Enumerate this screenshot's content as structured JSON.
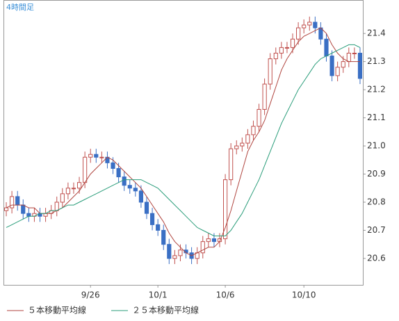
{
  "chart_data": {
    "type": "candlestick",
    "title": "4時間足",
    "categories": [
      null,
      null,
      null,
      null,
      null,
      null,
      null,
      null,
      null,
      null,
      null,
      null,
      null,
      null,
      null,
      "9/26",
      null,
      null,
      null,
      null,
      null,
      null,
      null,
      null,
      null,
      null,
      null,
      "10/1",
      null,
      null,
      null,
      null,
      null,
      null,
      null,
      null,
      null,
      null,
      null,
      "10/6",
      null,
      null,
      null,
      null,
      null,
      null,
      null,
      null,
      null,
      null,
      null,
      null,
      null,
      "10/10",
      null,
      null,
      null,
      null,
      null,
      null,
      null,
      null,
      null,
      null
    ],
    "open": [
      20.77,
      20.78,
      20.82,
      20.79,
      20.76,
      20.75,
      20.76,
      20.75,
      20.76,
      20.77,
      20.8,
      20.83,
      20.85,
      20.85,
      20.87,
      20.96,
      20.97,
      20.96,
      20.96,
      20.94,
      20.92,
      20.89,
      20.86,
      20.85,
      20.84,
      20.8,
      20.76,
      20.72,
      20.7,
      20.65,
      20.6,
      20.61,
      20.63,
      20.62,
      20.6,
      20.62,
      20.66,
      20.67,
      20.66,
      20.67,
      20.88,
      20.99,
      21.0,
      21.01,
      21.04,
      21.07,
      21.13,
      21.22,
      21.31,
      21.33,
      21.35,
      21.35,
      21.38,
      21.42,
      21.43,
      21.44,
      21.42,
      21.38,
      21.32,
      21.25,
      21.28,
      21.3,
      21.33,
      21.33
    ],
    "high": [
      20.8,
      20.84,
      20.84,
      20.81,
      20.78,
      20.78,
      20.78,
      20.78,
      20.79,
      20.82,
      20.85,
      20.87,
      20.87,
      20.89,
      20.98,
      20.99,
      20.99,
      20.98,
      20.98,
      20.96,
      20.94,
      20.91,
      20.88,
      20.87,
      20.86,
      20.82,
      20.78,
      20.74,
      20.72,
      20.67,
      20.63,
      20.65,
      20.65,
      20.64,
      20.64,
      20.68,
      20.69,
      20.69,
      20.69,
      20.9,
      21.01,
      21.02,
      21.03,
      21.06,
      21.09,
      21.15,
      21.24,
      21.33,
      21.35,
      21.37,
      21.37,
      21.4,
      21.44,
      21.45,
      21.46,
      21.46,
      21.44,
      21.4,
      21.34,
      21.3,
      21.32,
      21.35,
      21.35,
      21.35
    ],
    "low": [
      20.75,
      20.76,
      20.77,
      20.74,
      20.73,
      20.73,
      20.73,
      20.73,
      20.74,
      20.75,
      20.78,
      20.81,
      20.83,
      20.83,
      20.85,
      20.94,
      20.94,
      20.94,
      20.92,
      20.9,
      20.87,
      20.84,
      20.83,
      20.82,
      20.78,
      20.74,
      20.7,
      20.68,
      20.63,
      20.58,
      20.58,
      20.59,
      20.6,
      20.58,
      20.58,
      20.6,
      20.64,
      20.64,
      20.64,
      20.65,
      20.86,
      20.97,
      20.98,
      20.99,
      21.02,
      21.05,
      21.11,
      21.2,
      21.29,
      21.31,
      21.33,
      21.33,
      21.36,
      21.4,
      21.41,
      21.4,
      21.36,
      21.3,
      21.23,
      21.23,
      21.26,
      21.28,
      21.31,
      21.22
    ],
    "close": [
      20.78,
      20.82,
      20.79,
      20.76,
      20.75,
      20.76,
      20.75,
      20.76,
      20.77,
      20.8,
      20.83,
      20.85,
      20.85,
      20.87,
      20.96,
      20.97,
      20.96,
      20.96,
      20.94,
      20.92,
      20.89,
      20.86,
      20.85,
      20.84,
      20.8,
      20.76,
      20.72,
      20.7,
      20.65,
      20.6,
      20.61,
      20.63,
      20.62,
      20.6,
      20.62,
      20.66,
      20.67,
      20.66,
      20.67,
      20.88,
      20.99,
      21.0,
      21.01,
      21.04,
      21.07,
      21.13,
      21.22,
      21.31,
      21.33,
      21.35,
      21.35,
      21.38,
      21.42,
      21.43,
      21.44,
      21.42,
      21.38,
      21.32,
      21.25,
      21.28,
      21.3,
      21.33,
      21.33,
      21.24
    ],
    "up_color": "#c0504d",
    "down_color": "#3a6fc4",
    "series": [
      {
        "name": "５本移動平均線",
        "color": "#b0453f",
        "values": [
          20.78,
          20.79,
          20.79,
          20.79,
          20.78,
          20.78,
          20.76,
          20.76,
          20.76,
          20.77,
          20.78,
          20.8,
          20.82,
          20.84,
          20.87,
          20.9,
          20.92,
          20.94,
          20.96,
          20.95,
          20.93,
          20.91,
          20.89,
          20.87,
          20.85,
          20.82,
          20.79,
          20.76,
          20.73,
          20.69,
          20.66,
          20.64,
          20.62,
          20.61,
          20.62,
          20.63,
          20.64,
          20.64,
          20.66,
          20.71,
          20.77,
          20.84,
          20.91,
          20.98,
          21.02,
          21.05,
          21.09,
          21.15,
          21.21,
          21.27,
          21.31,
          21.34,
          21.37,
          21.39,
          21.4,
          21.41,
          21.42,
          21.4,
          21.36,
          21.33,
          21.31,
          21.3,
          21.3,
          21.3
        ]
      },
      {
        "name": "２５本移動平均線",
        "color": "#2a9d7a",
        "values": [
          20.71,
          20.72,
          20.73,
          20.74,
          20.75,
          20.75,
          20.76,
          20.76,
          20.77,
          20.77,
          20.78,
          20.79,
          20.79,
          20.8,
          20.81,
          20.82,
          20.83,
          20.84,
          20.85,
          20.86,
          20.87,
          20.88,
          20.88,
          20.88,
          20.88,
          20.87,
          20.86,
          20.85,
          20.83,
          20.81,
          20.79,
          20.77,
          20.75,
          20.73,
          20.71,
          20.7,
          20.69,
          20.68,
          20.68,
          20.68,
          20.7,
          20.73,
          20.76,
          20.8,
          20.84,
          20.88,
          20.93,
          20.98,
          21.03,
          21.08,
          21.12,
          21.16,
          21.2,
          21.23,
          21.26,
          21.29,
          21.31,
          21.32,
          21.33,
          21.34,
          21.35,
          21.36,
          21.36,
          21.35
        ]
      }
    ],
    "ylim": [
      20.506,
      21.519
    ],
    "yticks": [
      20.6,
      20.7,
      20.8,
      20.9,
      {
        "value": 21,
        "label": "21.0"
      },
      21.1,
      21.2,
      21.3,
      21.4
    ]
  }
}
